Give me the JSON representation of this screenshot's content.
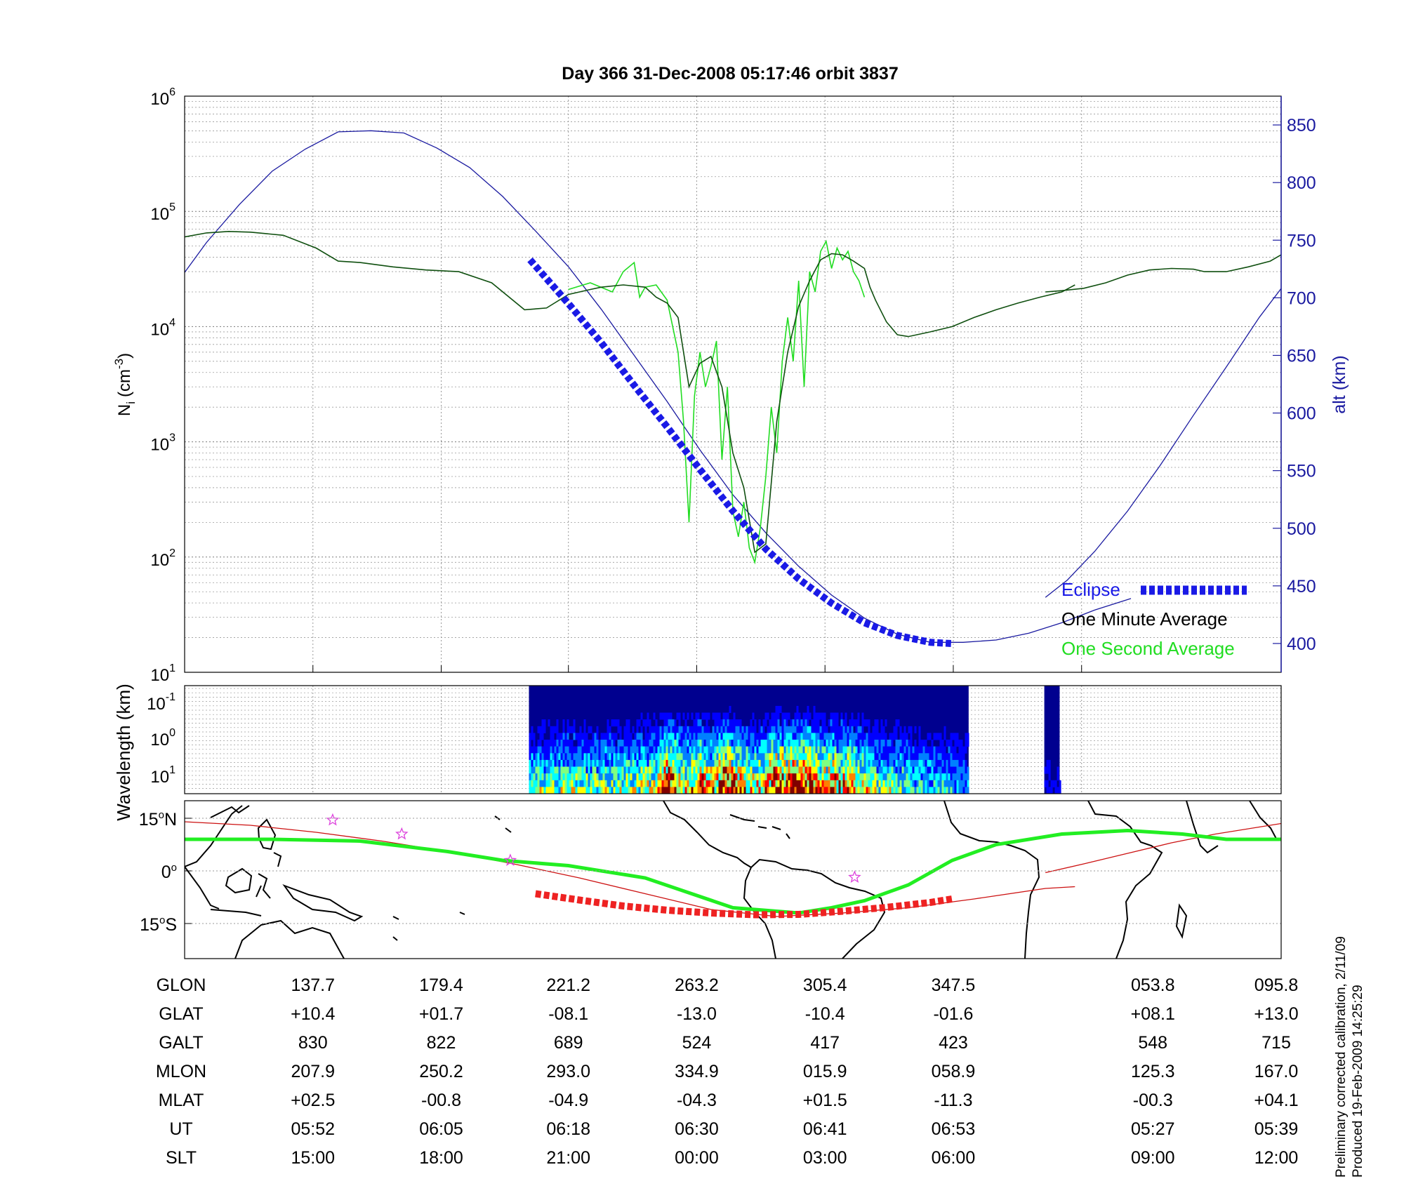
{
  "title": "Day 366  31-Dec-2008 05:17:46   orbit 3837",
  "side_note": {
    "line1": "Preliminary corrected calibration, 2/11/09",
    "line2": "Produced 19-Feb-2009 14:25:29"
  },
  "colors": {
    "altitude": "#1a1aa0",
    "eclipse": "#1a1ae6",
    "minute_avg": "#0f4f0f",
    "second_avg": "#22dd22",
    "track": "#cc1111",
    "track_eclipse": "#ee2222",
    "dip_equator": "#22ee22",
    "stars": "#dd44dd"
  },
  "chart_data": [
    {
      "type": "line",
      "panel": "density",
      "ylabel": "N",
      "ylabel_sub": "i",
      "ylabel_unit": "(cm",
      "ylabel_exp": "-3",
      "ylabel_close": ")",
      "yscale": "log",
      "ylim": [
        10,
        1000000
      ],
      "yticks": [
        {
          "base": "10",
          "exp": "1",
          "value": 10
        },
        {
          "base": "10",
          "exp": "2",
          "value": 100
        },
        {
          "base": "10",
          "exp": "3",
          "value": 1000
        },
        {
          "base": "10",
          "exp": "4",
          "value": 10000
        },
        {
          "base": "10",
          "exp": "5",
          "value": 100000
        },
        {
          "base": "10",
          "exp": "6",
          "value": 1000000
        }
      ],
      "y2label": "alt (km)",
      "y2lim": [
        375,
        875
      ],
      "y2ticks": [
        "400",
        "450",
        "500",
        "550",
        "600",
        "650",
        "700",
        "750",
        "800",
        "850"
      ],
      "xlim": [
        0,
        100
      ],
      "grid": true,
      "legend_position": "bottom-right",
      "legend": [
        {
          "label": "Eclipse",
          "series": "eclipse"
        },
        {
          "label": "One Minute Average",
          "series": "minute_avg"
        },
        {
          "label": "One Second Average",
          "series": "second_avg"
        }
      ],
      "series": [
        {
          "id": "altitude",
          "axis": "right",
          "segments": [
            {
              "x": [
                0,
                2,
                5,
                8,
                11,
                14,
                17,
                20,
                23,
                26,
                29,
                32,
                35,
                38,
                41,
                44,
                47,
                50,
                53,
                56,
                59,
                62,
                65,
                68,
                71,
                74,
                77,
                80,
                83,
                86.3
              ],
              "y": [
                722,
                748,
                781,
                810,
                829,
                844,
                845,
                843,
                830,
                813,
                788,
                758,
                727,
                690,
                650,
                610,
                568,
                529,
                496,
                467,
                442,
                422,
                408,
                401,
                401,
                403,
                409,
                418,
                429,
                439
              ]
            },
            {
              "x": [
                78.5,
                80.5,
                83,
                86,
                89,
                92,
                95,
                98,
                100
              ],
              "y": [
                440,
                455,
                480,
                515,
                555,
                598,
                640,
                683,
                708
              ]
            }
          ]
        },
        {
          "id": "eclipse",
          "axis": "right",
          "x": [
            31.5,
            35,
            38,
            41,
            44,
            47,
            50,
            53,
            56,
            59,
            62,
            65,
            68,
            69.9
          ],
          "y": [
            733,
            695,
            661,
            624,
            588,
            551,
            515,
            482,
            456,
            435,
            418,
            407,
            401,
            400
          ]
        },
        {
          "id": "minute_avg",
          "axis": "left",
          "segments": [
            {
              "x": [
                0,
                2,
                4,
                6,
                9,
                12,
                14,
                16,
                19,
                22,
                25,
                28,
                31,
                33,
                35,
                37,
                38,
                40,
                42,
                43,
                44,
                45,
                46,
                47,
                48,
                49,
                50,
                51,
                52,
                53,
                54,
                55,
                56,
                57,
                58,
                59,
                60,
                61,
                62,
                62.5,
                63,
                64,
                65,
                66,
                68,
                70,
                72,
                74,
                76,
                78,
                80,
                81.2
              ],
              "y": [
                60000,
                65000,
                67000,
                66000,
                62000,
                48000,
                37000,
                36000,
                33000,
                31000,
                30000,
                24000,
                14000,
                14500,
                19000,
                21000,
                22000,
                23000,
                22000,
                18000,
                16000,
                12000,
                3000,
                4800,
                5500,
                3000,
                800,
                400,
                110,
                130,
                1500,
                6000,
                15000,
                25000,
                38000,
                43000,
                42000,
                37000,
                32000,
                22000,
                17000,
                11000,
                8500,
                8200,
                9000,
                10000,
                12000,
                14000,
                16000,
                18000,
                20000,
                23000
              ]
            },
            {
              "x": [
                78.5,
                80,
                82,
                84,
                86,
                88,
                90,
                92,
                93,
                95,
                97,
                99,
                100
              ],
              "y": [
                20000,
                20500,
                21500,
                24000,
                28000,
                31000,
                32000,
                31500,
                30000,
                30000,
                33000,
                37000,
                42000
              ]
            }
          ]
        },
        {
          "id": "second_avg",
          "axis": "left",
          "x": [
            35,
            37,
            39,
            40,
            41,
            41.5,
            42,
            43,
            44,
            45,
            45.5,
            46,
            46.5,
            47,
            47.5,
            48,
            48.5,
            49,
            49.5,
            50,
            50.5,
            51,
            51.5,
            52,
            52.5,
            53,
            53.5,
            54,
            54.5,
            55,
            55.5,
            56,
            56.5,
            57,
            57.5,
            58,
            58.5,
            59,
            59.5,
            60,
            60.5,
            61,
            61.5,
            62
          ],
          "y": [
            21000,
            24000,
            20000,
            30000,
            36000,
            18000,
            22000,
            23000,
            17000,
            6000,
            1500,
            200,
            2500,
            6000,
            3000,
            4500,
            7500,
            700,
            3000,
            250,
            150,
            300,
            120,
            90,
            180,
            500,
            2000,
            800,
            5000,
            12000,
            5000,
            25000,
            3000,
            30000,
            20000,
            45000,
            55000,
            32000,
            48000,
            38000,
            45000,
            30000,
            25000,
            18000
          ]
        }
      ]
    },
    {
      "type": "heatmap",
      "panel": "spectrogram",
      "ylabel": "Wavelength (km)",
      "yticks": [
        {
          "base": "10",
          "exp": "-1"
        },
        {
          "base": "10",
          "exp": "0"
        },
        {
          "base": "10",
          "exp": "1"
        }
      ],
      "data_blocks": [
        {
          "x_start": 31.4,
          "x_end": 71.5
        },
        {
          "x_start": 78.4,
          "x_end": 79.8
        }
      ],
      "intensity_profile": {
        "x": [
          31.4,
          35,
          38,
          41,
          43,
          44,
          45,
          46,
          47,
          48,
          49,
          50,
          51,
          52,
          53,
          54,
          55,
          56,
          57,
          58,
          59,
          60,
          61,
          62,
          63,
          65,
          67,
          69,
          71.5
        ],
        "level": [
          0.45,
          0.5,
          0.5,
          0.55,
          0.6,
          0.95,
          0.75,
          0.6,
          0.85,
          0.65,
          0.95,
          0.8,
          0.7,
          0.6,
          0.75,
          0.95,
          0.85,
          0.9,
          1.0,
          0.7,
          0.8,
          0.75,
          0.7,
          0.6,
          0.5,
          0.45,
          0.4,
          0.35,
          0.3
        ]
      },
      "colorscale": [
        "#00008f",
        "#0000ff",
        "#0080ff",
        "#00ffff",
        "#80ff80",
        "#ffff00",
        "#ff8000",
        "#ff0000",
        "#800000"
      ]
    },
    {
      "type": "map",
      "panel": "ground-track",
      "yticks": [
        {
          "label": "15",
          "hemi": "N",
          "lat": 15
        },
        {
          "label": "0",
          "hemi": "",
          "lat": 0
        },
        {
          "label": "15",
          "hemi": "S",
          "lat": -15
        }
      ],
      "ylim": [
        -25,
        20
      ],
      "series": [
        {
          "id": "track",
          "segments": [
            {
              "x": [
                0,
                6,
                12,
                18,
                24,
                30,
                36,
                42,
                48,
                54,
                60,
                66,
                72,
                78.5,
                81.2
              ],
              "y": [
                14,
                13,
                11,
                8.5,
                5.5,
                2,
                -2,
                -6.5,
                -11,
                -13,
                -12,
                -10.5,
                -8,
                -5,
                -4.5
              ]
            },
            {
              "x": [
                78.5,
                82,
                86,
                90,
                94,
                98,
                100
              ],
              "y": [
                -0.5,
                2,
                5,
                8,
                10.5,
                12.5,
                13.5
              ]
            }
          ]
        },
        {
          "id": "track_eclipse",
          "x": [
            32,
            36,
            40,
            44,
            48,
            52,
            56,
            60,
            64,
            68,
            70
          ],
          "y": [
            -6.5,
            -8.3,
            -10,
            -11.2,
            -12,
            -12.5,
            -12.4,
            -11.5,
            -10.4,
            -9,
            -8
          ]
        },
        {
          "id": "dip_equator",
          "x": [
            0,
            8,
            16,
            24,
            29,
            35,
            42,
            50,
            56,
            59,
            62,
            66,
            70,
            74,
            80,
            86,
            91,
            95,
            100
          ],
          "y": [
            9,
            9,
            8.5,
            5.5,
            3,
            1.5,
            -2,
            -10.5,
            -12,
            -10.5,
            -8.5,
            -4,
            3,
            7.5,
            10.5,
            11.5,
            10.5,
            9,
            9
          ]
        },
        {
          "id": "stars",
          "x": [
            13.5,
            19.8,
            29.7,
            61.1
          ],
          "y": [
            14.5,
            10.5,
            3,
            -1.8
          ]
        }
      ]
    }
  ],
  "table": {
    "row_labels": [
      "GLON",
      "GLAT",
      "GALT",
      "MLON",
      "MLAT",
      "UT",
      "SLT"
    ],
    "columns": [
      {
        "x": 11.7,
        "values": [
          "137.7",
          "+10.4",
          "830",
          "207.9",
          "+02.5",
          "05:52",
          "15:00"
        ]
      },
      {
        "x": 23.4,
        "values": [
          "179.4",
          "+01.7",
          "822",
          "250.2",
          "-00.8",
          "06:05",
          "18:00"
        ]
      },
      {
        "x": 35.0,
        "values": [
          "221.2",
          "-08.1",
          "689",
          "293.0",
          "-04.9",
          "06:18",
          "21:00"
        ]
      },
      {
        "x": 46.7,
        "values": [
          "263.2",
          "-13.0",
          "524",
          "334.9",
          "-04.3",
          "06:30",
          "00:00"
        ]
      },
      {
        "x": 58.4,
        "values": [
          "305.4",
          "-10.4",
          "417",
          "015.9",
          "+01.5",
          "06:41",
          "03:00"
        ]
      },
      {
        "x": 70.1,
        "values": [
          "347.5",
          "-01.6",
          "423",
          "058.9",
          "-11.3",
          "06:53",
          "06:00"
        ]
      },
      {
        "x": 88.3,
        "values": [
          "053.8",
          "+08.1",
          "548",
          "125.3",
          "-00.3",
          "05:27",
          "09:00"
        ]
      },
      {
        "x": 100,
        "values": [
          "095.8",
          "+13.0",
          "715",
          "167.0",
          "+04.1",
          "05:39",
          "12:00"
        ]
      }
    ]
  }
}
